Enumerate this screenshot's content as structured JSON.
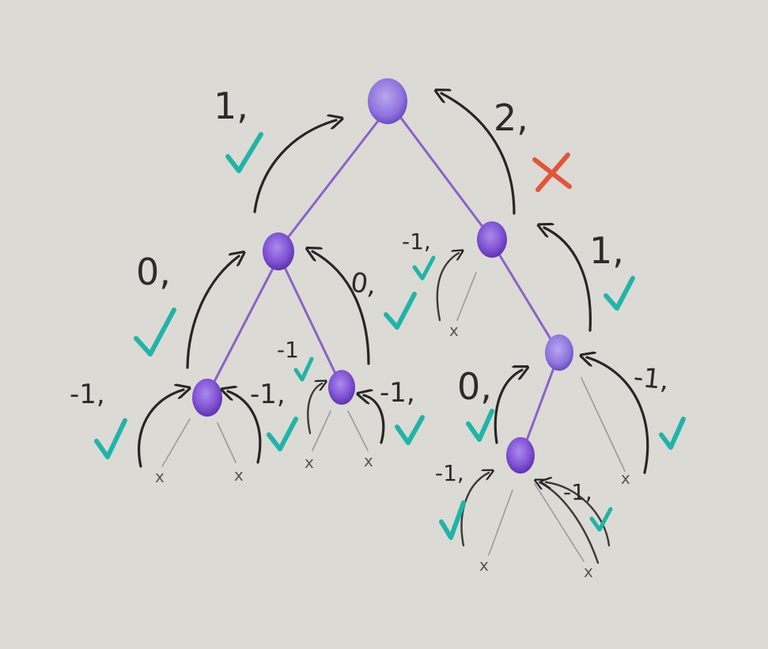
{
  "nodes": {
    "root_value": "2,",
    "left_child_value": "1,",
    "right_child_value": "2,",
    "left_left_value": "0,",
    "left_right_value": "0,",
    "right_left_value": "-1,",
    "right_right_value": "1,",
    "ll_leaf_left_value": "-1,",
    "ll_leaf_right_value": "-1,",
    "lr_leaf_left_value": "-1",
    "lr_leaf_right_value": "-1,",
    "rr_left_value": "0,",
    "rr_right_value": "-1,",
    "rrl_left_value": "-1,",
    "rrl_right_value": "-1,"
  },
  "leaves": {
    "x": "x"
  },
  "colors": {
    "node": "#8457d8",
    "edge": "#8a62c9",
    "check": "#1fb5a8",
    "cross": "#e3543a"
  }
}
